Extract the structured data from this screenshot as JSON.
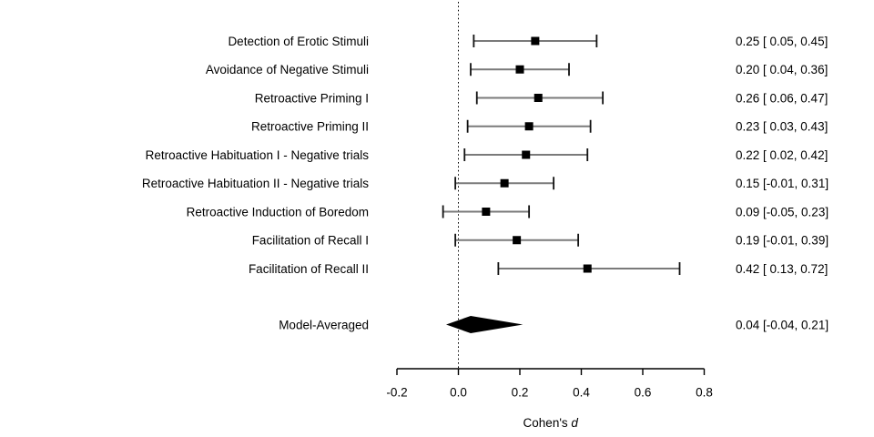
{
  "chart_data": {
    "type": "forest",
    "title": "",
    "xlabel": "Cohen's d",
    "xlabel_prefix": "Cohen's ",
    "xlabel_emph": "d",
    "xlim": [
      -0.2,
      0.8
    ],
    "x_ticks": [
      {
        "value": -0.2,
        "label": "-0.2"
      },
      {
        "value": 0.0,
        "label": "0.0"
      },
      {
        "value": 0.2,
        "label": "0.2"
      },
      {
        "value": 0.4,
        "label": "0.4"
      },
      {
        "value": 0.6,
        "label": "0.6"
      },
      {
        "value": 0.8,
        "label": "0.8"
      }
    ],
    "reference_line": 0.0,
    "grid": false,
    "legend": "none",
    "studies": [
      {
        "label": "Detection of Erotic Stimuli",
        "estimate": 0.25,
        "ci_lower": 0.05,
        "ci_upper": 0.45,
        "annotation": "0.25 [ 0.05, 0.45]"
      },
      {
        "label": "Avoidance of Negative Stimuli",
        "estimate": 0.2,
        "ci_lower": 0.04,
        "ci_upper": 0.36,
        "annotation": "0.20 [ 0.04, 0.36]"
      },
      {
        "label": "Retroactive Priming I",
        "estimate": 0.26,
        "ci_lower": 0.06,
        "ci_upper": 0.47,
        "annotation": "0.26 [ 0.06, 0.47]"
      },
      {
        "label": "Retroactive Priming II",
        "estimate": 0.23,
        "ci_lower": 0.03,
        "ci_upper": 0.43,
        "annotation": "0.23 [ 0.03, 0.43]"
      },
      {
        "label": "Retroactive Habituation I - Negative trials",
        "estimate": 0.22,
        "ci_lower": 0.02,
        "ci_upper": 0.42,
        "annotation": "0.22 [ 0.02, 0.42]"
      },
      {
        "label": "Retroactive Habituation II - Negative trials",
        "estimate": 0.15,
        "ci_lower": -0.01,
        "ci_upper": 0.31,
        "annotation": "0.15 [-0.01, 0.31]"
      },
      {
        "label": "Retroactive Induction of Boredom",
        "estimate": 0.09,
        "ci_lower": -0.05,
        "ci_upper": 0.23,
        "annotation": "0.09 [-0.05, 0.23]"
      },
      {
        "label": "Facilitation of Recall I",
        "estimate": 0.19,
        "ci_lower": -0.01,
        "ci_upper": 0.39,
        "annotation": "0.19 [-0.01, 0.39]"
      },
      {
        "label": "Facilitation of Recall II",
        "estimate": 0.42,
        "ci_lower": 0.13,
        "ci_upper": 0.72,
        "annotation": "0.42 [ 0.13, 0.72]"
      }
    ],
    "summary": {
      "label": "Model-Averaged",
      "estimate": 0.04,
      "ci_lower": -0.04,
      "ci_upper": 0.21,
      "annotation": "0.04 [-0.04, 0.21]"
    },
    "colors": {
      "background": "#ffffff",
      "text": "#000000",
      "axis": "#000000",
      "ci_line": "#7a7a7a",
      "ci_cap": "#111111",
      "marker": "#000000",
      "summary_fill": "#000000",
      "reference_line": "#000000"
    }
  }
}
